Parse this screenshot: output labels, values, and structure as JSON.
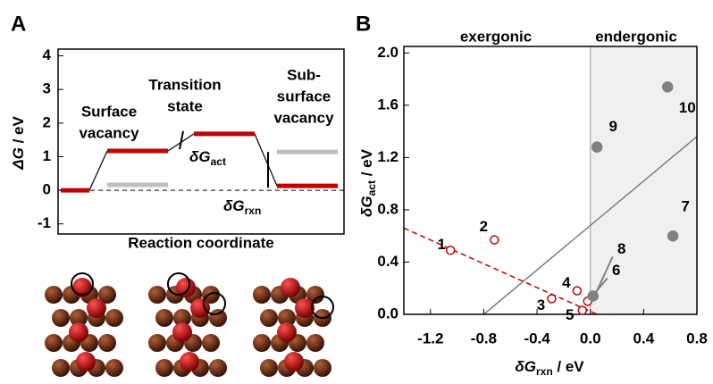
{
  "chart_data": [
    {
      "type": "energy-diagram",
      "panel": "A",
      "ylabel": {
        "text": "ΔG",
        "suffix": " / eV"
      },
      "xlabel": "Reaction coordinate",
      "ylim": [
        -1.3,
        4.2
      ],
      "yticks": [
        -1,
        0,
        1,
        2,
        3,
        4
      ],
      "states": [
        [
          "Surface",
          "vacancy"
        ],
        [
          "Transition",
          "state"
        ],
        [
          "Sub-",
          "surface",
          "vacancy"
        ]
      ],
      "series": [
        {
          "color": "#c00000",
          "values": [
            0,
            1.17,
            1.68,
            0.13
          ]
        },
        {
          "color": "#bfbfbf",
          "values": [
            null,
            0.16,
            null,
            1.14
          ]
        }
      ],
      "annotations": [
        {
          "text": "δG",
          "sub": "act"
        },
        {
          "text": "δG",
          "sub": "rxn"
        }
      ]
    },
    {
      "type": "scatter",
      "panel": "B",
      "xlabel": {
        "text": "δG",
        "sub": "rxn",
        "suffix": " / eV"
      },
      "ylabel": {
        "text": "δG",
        "sub": "act",
        "suffix": " / eV"
      },
      "xlim": [
        -1.4,
        0.8
      ],
      "ylim": [
        0,
        2.05
      ],
      "xticks": [
        -1.2,
        -0.8,
        -0.4,
        {
          "value": 0,
          "label": "0.0"
        },
        0.4,
        0.8
      ],
      "yticks": [
        {
          "value": 0,
          "label": "0.0"
        },
        0.4,
        0.8,
        1.2,
        1.6,
        {
          "value": 2,
          "label": "2.0"
        }
      ],
      "regions": [
        "exergonic",
        "endergonic"
      ],
      "shade_x": [
        0,
        0.8
      ],
      "series": [
        {
          "color": "#c00000",
          "filled": false,
          "labels": [
            "1",
            "2",
            "3",
            "4",
            "5",
            "6"
          ],
          "x": [
            -1.05,
            -0.72,
            -0.29,
            -0.1,
            -0.06,
            -0.02
          ],
          "y": [
            0.49,
            0.57,
            0.12,
            0.18,
            0.03,
            0.1
          ]
        },
        {
          "color": "#808080",
          "filled": true,
          "labels": [
            "8",
            "9",
            "10",
            "7"
          ],
          "x": [
            0.02,
            0.05,
            0.58,
            0.62
          ],
          "y": [
            0.14,
            1.28,
            1.74,
            0.6
          ]
        }
      ],
      "lines": [
        {
          "color": "#c00000",
          "dashed": true,
          "x": [
            -1.4,
            0.05
          ],
          "y": [
            0.66,
            0
          ]
        },
        {
          "color": "#808080",
          "dashed": false,
          "x": [
            -0.8,
            0.8
          ],
          "y": [
            0,
            1.36
          ]
        }
      ]
    }
  ]
}
